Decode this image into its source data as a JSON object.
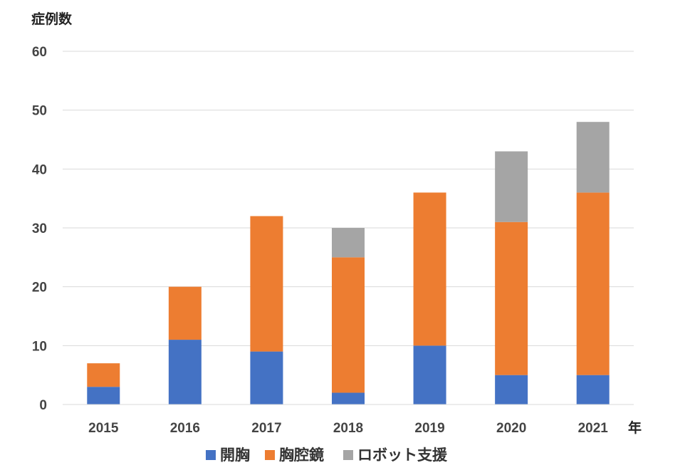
{
  "chart_data": {
    "type": "bar",
    "stacked": true,
    "ylabel": "症例数",
    "xlabel": "年",
    "categories": [
      "2015",
      "2016",
      "2017",
      "2018",
      "2019",
      "2020",
      "2021"
    ],
    "ylim": [
      0,
      60
    ],
    "yticks": [
      0,
      10,
      20,
      30,
      40,
      50,
      60
    ],
    "grid": true,
    "legend_position": "bottom",
    "series": [
      {
        "name": "開胸",
        "color": "#4472C4",
        "values": [
          3,
          11,
          9,
          2,
          10,
          5,
          5
        ]
      },
      {
        "name": "胸腔鏡",
        "color": "#ED7D31",
        "values": [
          4,
          9,
          23,
          23,
          26,
          26,
          31
        ]
      },
      {
        "name": "ロボット支援",
        "color": "#A5A5A5",
        "values": [
          0,
          0,
          0,
          5,
          0,
          12,
          12
        ]
      }
    ]
  }
}
